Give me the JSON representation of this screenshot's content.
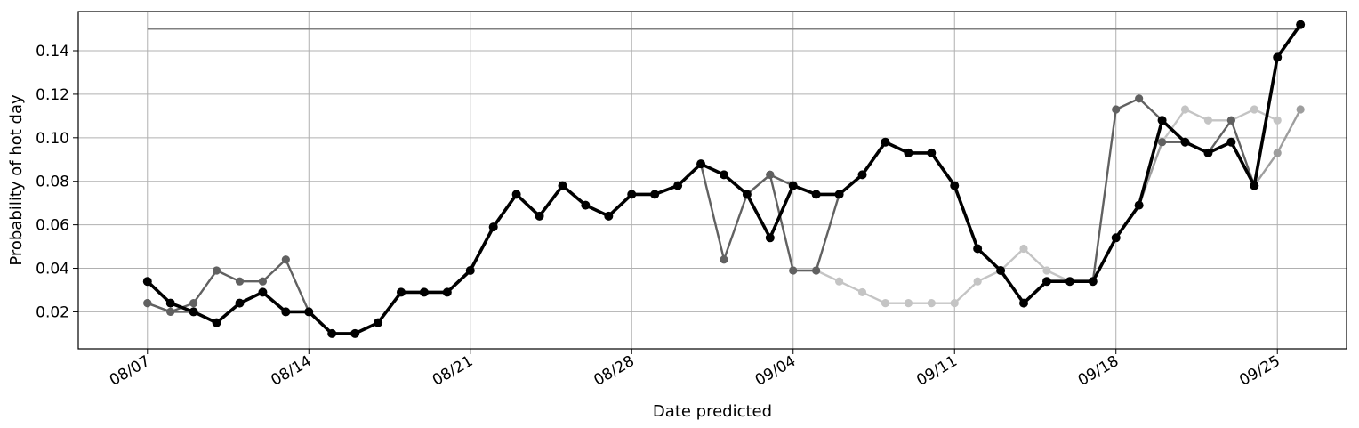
{
  "chart_data": {
    "type": "line",
    "xlabel": "Date predicted",
    "ylabel": "Probability of hot day",
    "x_ticks": [
      "08/07",
      "08/14",
      "08/21",
      "08/28",
      "09/04",
      "09/11",
      "09/18",
      "09/25"
    ],
    "y_ticks": [
      "0.02",
      "0.04",
      "0.06",
      "0.08",
      "0.10",
      "0.12",
      "0.14"
    ],
    "xlim": [
      "08/04",
      "09/28"
    ],
    "ylim": [
      0.003,
      0.158
    ],
    "grid": true,
    "legend": "none",
    "reference_line": {
      "y": 0.15,
      "x_from": "08/07",
      "x_to": "09/26",
      "color": "#808080"
    },
    "series": [
      {
        "color": "#c4c4c4",
        "points": [
          [
            "09/04",
            0.039
          ],
          [
            "09/05",
            0.039
          ],
          [
            "09/06",
            0.034
          ],
          [
            "09/07",
            0.029
          ],
          [
            "09/08",
            0.024
          ],
          [
            "09/09",
            0.024
          ],
          [
            "09/10",
            0.024
          ],
          [
            "09/11",
            0.024
          ],
          [
            "09/12",
            0.034
          ],
          [
            "09/13",
            0.039
          ],
          [
            "09/14",
            0.049
          ],
          [
            "09/15",
            0.039
          ],
          [
            "09/16",
            0.034
          ],
          [
            "09/17",
            0.034
          ],
          [
            "09/18",
            0.054
          ],
          [
            "09/19",
            0.069
          ],
          [
            "09/20",
            0.098
          ],
          [
            "09/21",
            0.113
          ],
          [
            "09/22",
            0.108
          ],
          [
            "09/23",
            0.108
          ],
          [
            "09/24",
            0.113
          ],
          [
            "09/25",
            0.108
          ]
        ]
      },
      {
        "color": "#9e9e9e",
        "points": [
          [
            "09/02",
            0.074
          ],
          [
            "09/03",
            0.083
          ],
          [
            "09/04",
            0.078
          ],
          [
            "09/05",
            0.074
          ],
          [
            "09/06",
            0.074
          ],
          [
            "09/07",
            0.083
          ],
          [
            "09/08",
            0.098
          ],
          [
            "09/09",
            0.093
          ],
          [
            "09/10",
            0.093
          ],
          [
            "09/11",
            0.078
          ],
          [
            "09/12",
            0.049
          ],
          [
            "09/13",
            0.039
          ],
          [
            "09/14",
            0.024
          ],
          [
            "09/15",
            0.034
          ],
          [
            "09/16",
            0.034
          ],
          [
            "09/17",
            0.034
          ],
          [
            "09/18",
            0.054
          ],
          [
            "09/19",
            0.069
          ],
          [
            "09/20",
            0.098
          ],
          [
            "09/21",
            0.098
          ],
          [
            "09/22",
            0.093
          ],
          [
            "09/23",
            0.098
          ],
          [
            "09/24",
            0.078
          ],
          [
            "09/25",
            0.093
          ],
          [
            "09/26",
            0.113
          ]
        ]
      },
      {
        "color": "#616161",
        "points": [
          [
            "08/07",
            0.024
          ],
          [
            "08/08",
            0.02
          ],
          [
            "08/09",
            0.02
          ],
          [
            "08/10",
            0.015
          ],
          [
            "08/11",
            0.024
          ],
          [
            "08/12",
            0.029
          ],
          [
            "08/13",
            0.02
          ],
          [
            "08/14",
            0.02
          ]
        ]
      },
      {
        "color": "#616161",
        "points": [
          [
            "08/07",
            0.024
          ],
          [
            "08/08",
            0.02
          ],
          [
            "08/09",
            0.024
          ],
          [
            "08/10",
            0.039
          ],
          [
            "08/11",
            0.034
          ],
          [
            "08/12",
            0.034
          ],
          [
            "08/13",
            0.044
          ],
          [
            "08/14",
            0.02
          ]
        ]
      },
      {
        "color": "#616161",
        "points": [
          [
            "08/31",
            0.088
          ],
          [
            "09/01",
            0.044
          ],
          [
            "09/02",
            0.074
          ],
          [
            "09/03",
            0.083
          ],
          [
            "09/04",
            0.078
          ],
          [
            "09/05",
            0.074
          ],
          [
            "09/06",
            0.074
          ]
        ]
      },
      {
        "color": "#616161",
        "points": [
          [
            "09/03",
            0.083
          ],
          [
            "09/04",
            0.039
          ],
          [
            "09/05",
            0.039
          ],
          [
            "09/06",
            0.074
          ]
        ]
      },
      {
        "color": "#616161",
        "points": [
          [
            "09/17",
            0.034
          ],
          [
            "09/18",
            0.113
          ],
          [
            "09/19",
            0.118
          ],
          [
            "09/20",
            0.108
          ],
          [
            "09/21",
            0.098
          ],
          [
            "09/22",
            0.093
          ],
          [
            "09/23",
            0.098
          ],
          [
            "09/24",
            0.078
          ]
        ]
      },
      {
        "color": "#616161",
        "points": [
          [
            "09/20",
            0.098
          ],
          [
            "09/21",
            0.098
          ],
          [
            "09/22",
            0.093
          ],
          [
            "09/23",
            0.108
          ],
          [
            "09/24",
            0.078
          ]
        ]
      },
      {
        "color": "#000000",
        "points": [
          [
            "08/07",
            0.034
          ],
          [
            "08/08",
            0.024
          ],
          [
            "08/09",
            0.02
          ],
          [
            "08/10",
            0.015
          ],
          [
            "08/11",
            0.024
          ],
          [
            "08/12",
            0.029
          ],
          [
            "08/13",
            0.02
          ],
          [
            "08/14",
            0.02
          ],
          [
            "08/15",
            0.01
          ],
          [
            "08/16",
            0.01
          ],
          [
            "08/17",
            0.015
          ],
          [
            "08/18",
            0.029
          ],
          [
            "08/19",
            0.029
          ],
          [
            "08/20",
            0.029
          ],
          [
            "08/21",
            0.039
          ],
          [
            "08/22",
            0.059
          ],
          [
            "08/23",
            0.074
          ],
          [
            "08/24",
            0.064
          ],
          [
            "08/25",
            0.078
          ],
          [
            "08/26",
            0.069
          ],
          [
            "08/27",
            0.064
          ],
          [
            "08/28",
            0.074
          ],
          [
            "08/29",
            0.074
          ],
          [
            "08/30",
            0.078
          ],
          [
            "08/31",
            0.088
          ],
          [
            "09/01",
            0.083
          ],
          [
            "09/02",
            0.074
          ],
          [
            "09/03",
            0.054
          ],
          [
            "09/04",
            0.078
          ],
          [
            "09/05",
            0.074
          ],
          [
            "09/06",
            0.074
          ],
          [
            "09/07",
            0.083
          ],
          [
            "09/08",
            0.098
          ],
          [
            "09/09",
            0.093
          ],
          [
            "09/10",
            0.093
          ],
          [
            "09/11",
            0.078
          ],
          [
            "09/12",
            0.049
          ],
          [
            "09/13",
            0.039
          ],
          [
            "09/14",
            0.024
          ],
          [
            "09/15",
            0.034
          ],
          [
            "09/16",
            0.034
          ],
          [
            "09/17",
            0.034
          ],
          [
            "09/18",
            0.054
          ],
          [
            "09/19",
            0.069
          ],
          [
            "09/20",
            0.108
          ],
          [
            "09/21",
            0.098
          ],
          [
            "09/22",
            0.093
          ],
          [
            "09/23",
            0.098
          ],
          [
            "09/24",
            0.078
          ],
          [
            "09/25",
            0.137
          ],
          [
            "09/26",
            0.152
          ]
        ]
      }
    ]
  }
}
